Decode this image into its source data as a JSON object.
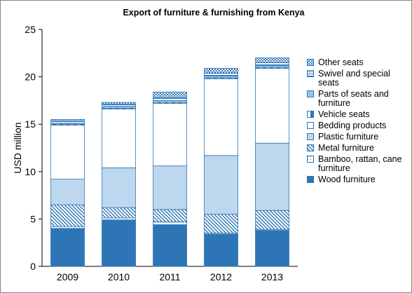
{
  "chart_data": {
    "type": "stacked_bar",
    "title": "Export of furniture & furnishing from Kenya",
    "y_label": "USD million",
    "categories": [
      "2009",
      "2010",
      "2011",
      "2012",
      "2013"
    ],
    "series": [
      {
        "name": "Wood furniture",
        "color": "#2e75b6",
        "pattern": "solid",
        "values": [
          4.0,
          4.9,
          4.4,
          3.4,
          3.8
        ]
      },
      {
        "name": "Bamboo, rattan, cane furniture",
        "color": "#2e75b6",
        "pattern": "dots",
        "values": [
          0.2,
          0.2,
          0.3,
          0.1,
          0.1
        ]
      },
      {
        "name": "Metal furniture",
        "color": "#2e75b6",
        "pattern": "diagonal",
        "values": [
          2.3,
          1.1,
          1.3,
          2.0,
          2.0
        ]
      },
      {
        "name": "Plastic furniture",
        "color": "#bdd7ee",
        "pattern": "solid",
        "values": [
          2.7,
          4.2,
          4.6,
          6.2,
          7.1
        ]
      },
      {
        "name": "Bedding products",
        "color": "#ffffff",
        "pattern": "solid",
        "values": [
          5.7,
          6.2,
          6.6,
          8.1,
          7.9
        ]
      },
      {
        "name": "Vehicle seats",
        "color": "#2e75b6",
        "pattern": "half",
        "values": [
          0.1,
          0.1,
          0.1,
          0.1,
          0.1
        ]
      },
      {
        "name": "Parts of seats and furniture",
        "color": "#9dc3e6",
        "pattern": "solid",
        "values": [
          0.1,
          0.2,
          0.2,
          0.2,
          0.2
        ]
      },
      {
        "name": "Swivel and special seats",
        "color": "#2e75b6",
        "pattern": "stripes",
        "values": [
          0.2,
          0.2,
          0.3,
          0.3,
          0.3
        ]
      },
      {
        "name": "Other seats",
        "color": "#2e75b6",
        "pattern": "checker",
        "values": [
          0.2,
          0.2,
          0.6,
          0.5,
          0.5
        ]
      }
    ],
    "ylim": [
      0,
      25
    ],
    "yticks": [
      0,
      5,
      10,
      15,
      20,
      25
    ],
    "grid": false
  }
}
